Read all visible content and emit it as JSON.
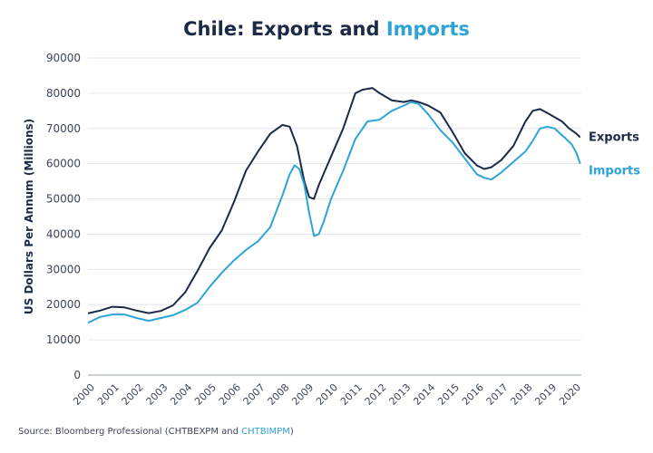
{
  "title": {
    "part1": "Chile: Exports and ",
    "part2": "Imports"
  },
  "source": {
    "prefix": "Source: Bloomberg Professional (CHTBEXPM and ",
    "highlight": "CHTBIMPM",
    "suffix": ")"
  },
  "colors": {
    "exports": "#1b2a47",
    "imports": "#2ea3d5",
    "axis_text": "#3b4658",
    "grid": "#e3e6ea"
  },
  "chart_data": {
    "type": "line",
    "title": "Chile: Exports and Imports",
    "xlabel": "",
    "ylabel": "US Dollars Per Annum (Millions)",
    "xlim": [
      2000,
      2020.3
    ],
    "ylim": [
      0,
      90000
    ],
    "yticks": [
      "0",
      "10000",
      "20000",
      "30000",
      "40000",
      "50000",
      "60000",
      "70000",
      "80000",
      "90000"
    ],
    "xticks": [
      "2000",
      "2001",
      "2002",
      "2003",
      "2004",
      "2005",
      "2006",
      "2007",
      "2008",
      "2009",
      "2010",
      "2011",
      "2012",
      "2013",
      "2014",
      "2015",
      "2016",
      "2017",
      "2018",
      "2019",
      "2020"
    ],
    "grid": "horizontal",
    "legend": "line-end labels",
    "series": [
      {
        "name": "Exports",
        "color": "#1b2a47",
        "x": [
          2000,
          2000.5,
          2001,
          2001.5,
          2002,
          2002.5,
          2003,
          2003.5,
          2004,
          2004.5,
          2005,
          2005.5,
          2006,
          2006.5,
          2007,
          2007.5,
          2008,
          2008.3,
          2008.6,
          2008.9,
          2009.1,
          2009.3,
          2009.5,
          2010,
          2010.5,
          2011,
          2011.3,
          2011.7,
          2012,
          2012.5,
          2013,
          2013.3,
          2013.6,
          2014,
          2014.5,
          2015,
          2015.5,
          2016,
          2016.3,
          2016.6,
          2017,
          2017.5,
          2018,
          2018.3,
          2018.6,
          2019,
          2019.5,
          2019.8,
          2020.1,
          2020.25
        ],
        "values": [
          17500,
          18300,
          19400,
          19200,
          18300,
          17600,
          18200,
          19800,
          23500,
          29500,
          36000,
          41000,
          49000,
          58000,
          63500,
          68500,
          71000,
          70500,
          65000,
          55000,
          50500,
          50000,
          54000,
          62000,
          70000,
          80000,
          81000,
          81500,
          80000,
          78000,
          77500,
          78000,
          77500,
          76500,
          74500,
          69000,
          63000,
          59500,
          58500,
          59000,
          61000,
          65000,
          72000,
          75000,
          75500,
          74000,
          72000,
          70000,
          68500,
          67500
        ]
      },
      {
        "name": "Imports",
        "color": "#2ea3d5",
        "x": [
          2000,
          2000.5,
          2001,
          2001.5,
          2002,
          2002.5,
          2003,
          2003.5,
          2004,
          2004.5,
          2005,
          2005.5,
          2006,
          2006.5,
          2007,
          2007.5,
          2008,
          2008.3,
          2008.5,
          2008.7,
          2008.9,
          2009.1,
          2009.3,
          2009.5,
          2009.7,
          2010,
          2010.5,
          2011,
          2011.5,
          2012,
          2012.5,
          2013,
          2013.3,
          2013.6,
          2014,
          2014.5,
          2015,
          2015.5,
          2016,
          2016.3,
          2016.6,
          2017,
          2017.5,
          2018,
          2018.3,
          2018.6,
          2018.9,
          2019.2,
          2019.6,
          2019.9,
          2020.1,
          2020.25
        ],
        "values": [
          14800,
          16500,
          17200,
          17200,
          16200,
          15400,
          16200,
          17000,
          18500,
          20500,
          25000,
          29000,
          32500,
          35500,
          38000,
          42000,
          51000,
          57000,
          59500,
          58500,
          54000,
          46000,
          39500,
          40000,
          43500,
          50000,
          58000,
          67000,
          72000,
          72500,
          75000,
          76500,
          77500,
          77000,
          74000,
          69500,
          66000,
          61500,
          57000,
          56000,
          55500,
          57500,
          60500,
          63500,
          66500,
          70000,
          70500,
          70000,
          67500,
          65500,
          63000,
          60000
        ]
      }
    ]
  }
}
